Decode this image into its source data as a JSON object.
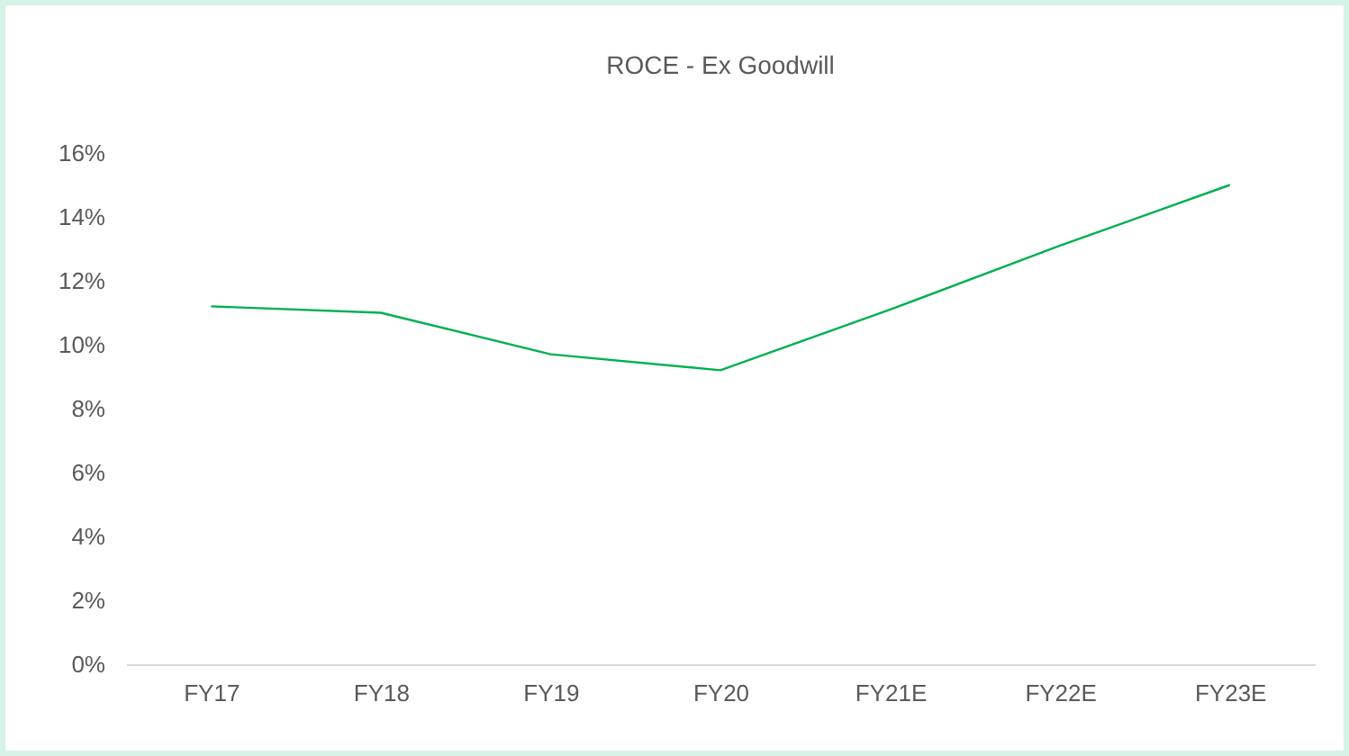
{
  "chart_data": {
    "type": "line",
    "title": "ROCE - Ex Goodwill",
    "categories": [
      "FY17",
      "FY18",
      "FY19",
      "FY20",
      "FY21E",
      "FY22E",
      "FY23E"
    ],
    "series": [
      {
        "color": "#00b050",
        "values": [
          11.2,
          11.0,
          9.7,
          9.2,
          11.1,
          13.1,
          15.0
        ]
      }
    ],
    "ylim": [
      0,
      16
    ],
    "yticks": [
      {
        "value": 0,
        "label": "0%"
      },
      {
        "value": 2,
        "label": "2%"
      },
      {
        "value": 4,
        "label": "4%"
      },
      {
        "value": 6,
        "label": "6%"
      },
      {
        "value": 8,
        "label": "8%"
      },
      {
        "value": 10,
        "label": "10%"
      },
      {
        "value": 12,
        "label": "12%"
      },
      {
        "value": 14,
        "label": "14%"
      },
      {
        "value": 16,
        "label": "16%"
      }
    ],
    "grid": false,
    "legend": false,
    "marker": "none",
    "line_style": "solid"
  }
}
